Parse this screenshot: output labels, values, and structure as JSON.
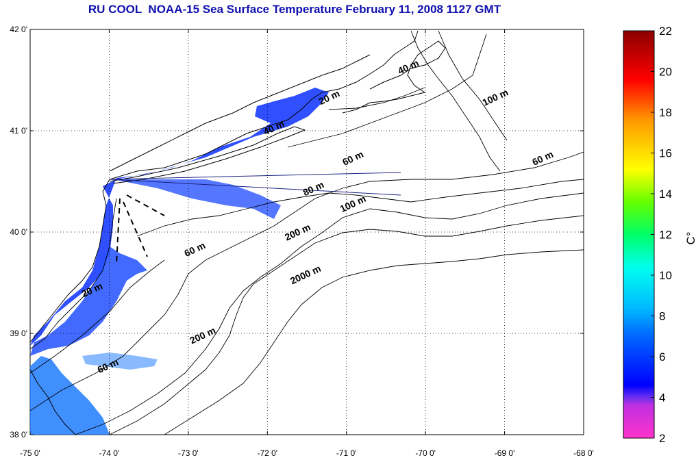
{
  "title": "RU COOL  NOAA-15 Sea Surface Temperature February 11, 2008 1127 GMT",
  "map": {
    "lon_range": [
      -75,
      -68
    ],
    "lat_range": [
      38,
      42
    ],
    "lon_ticks": [
      {
        "value": -75,
        "label": "-75 0'"
      },
      {
        "value": -74,
        "label": "-74 0'"
      },
      {
        "value": -73,
        "label": "-73 0'"
      },
      {
        "value": -72,
        "label": "-72 0'"
      },
      {
        "value": -71,
        "label": "-71 0'"
      },
      {
        "value": -70,
        "label": "-70 0'"
      },
      {
        "value": -69,
        "label": "-69 0'"
      },
      {
        "value": -68,
        "label": "-68 0'"
      }
    ],
    "lat_ticks": [
      {
        "value": 42,
        "label": "42 0'"
      },
      {
        "value": 41,
        "label": "41 0'"
      },
      {
        "value": 40,
        "label": "40 0'"
      },
      {
        "value": 39,
        "label": "39 0'"
      },
      {
        "value": 38,
        "label": "38 0'"
      }
    ],
    "contour_labels": [
      {
        "text": "20 m",
        "lon": -71.2,
        "lat": 41.3
      },
      {
        "text": "40 m",
        "lon": -71.9,
        "lat": 41.0
      },
      {
        "text": "40 m",
        "lon": -70.2,
        "lat": 41.6
      },
      {
        "text": "100 m",
        "lon": -69.1,
        "lat": 41.3
      },
      {
        "text": "60 m",
        "lon": -70.9,
        "lat": 40.7
      },
      {
        "text": "60 m",
        "lon": -68.5,
        "lat": 40.7
      },
      {
        "text": "80 m",
        "lon": -71.4,
        "lat": 40.4
      },
      {
        "text": "100 m",
        "lon": -70.9,
        "lat": 40.25
      },
      {
        "text": "200 m",
        "lon": -71.6,
        "lat": 39.97
      },
      {
        "text": "2000 m",
        "lon": -71.5,
        "lat": 39.55
      },
      {
        "text": "60 m",
        "lon": -72.9,
        "lat": 39.8
      },
      {
        "text": "20 m",
        "lon": -74.2,
        "lat": 39.4
      },
      {
        "text": "200 m",
        "lon": -72.8,
        "lat": 38.95
      },
      {
        "text": "60 m",
        "lon": -74.0,
        "lat": 38.65
      }
    ],
    "ocean_color": "#ffffff",
    "grid": true
  },
  "colorbar": {
    "min": 2,
    "max": 22,
    "ticks": [
      "22",
      "20",
      "18",
      "16",
      "14",
      "12",
      "10",
      "8",
      "6",
      "4",
      "2"
    ],
    "unit_label": "C°",
    "colors": [
      "#ff33cc",
      "#8a30e0",
      "#0033ff",
      "#0099ff",
      "#00ffff",
      "#00ff66",
      "#66ff00",
      "#ffff00",
      "#ff9900",
      "#ff0000",
      "#8b0000"
    ]
  }
}
